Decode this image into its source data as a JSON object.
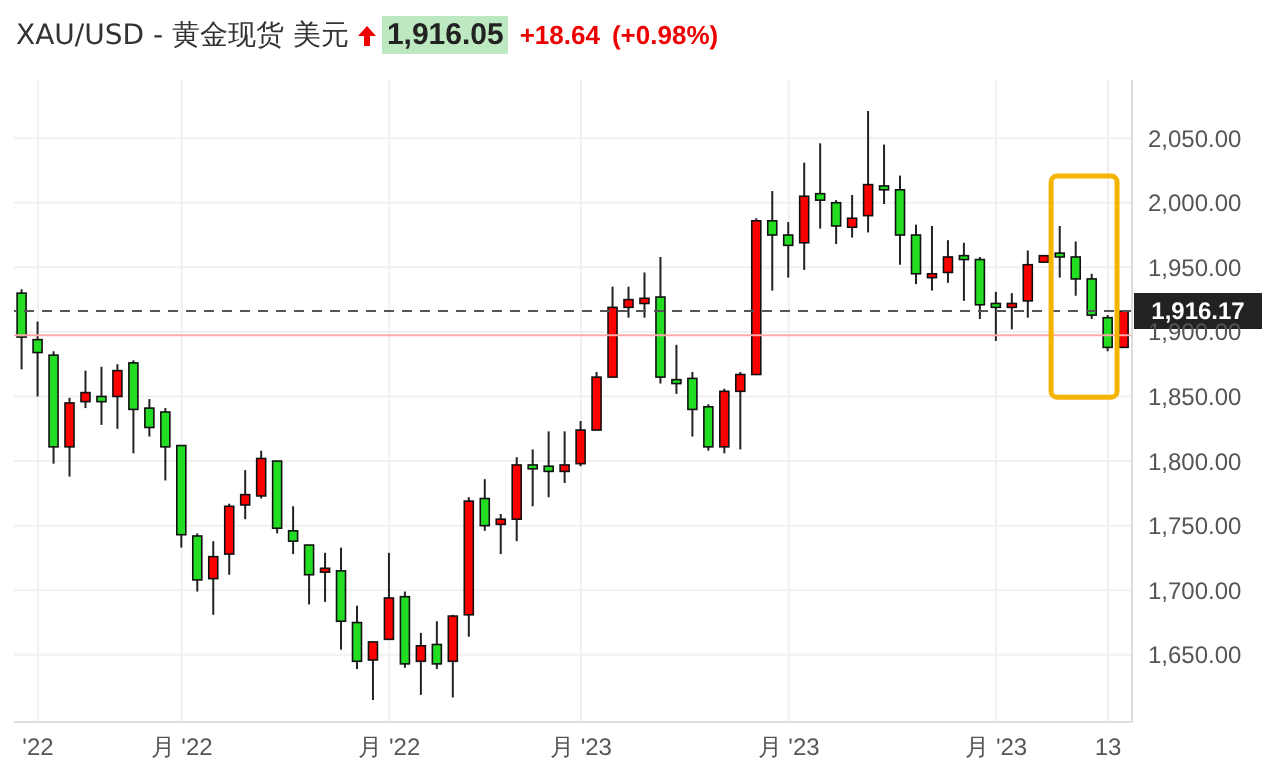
{
  "chart_data": {
    "type": "candlestick",
    "title": "XAU/USD - 黄金现货 美元",
    "annotations": [
      "1,916.05",
      "+18.64",
      "(+0.98%)"
    ],
    "categories": [
      null,
      "'22",
      null,
      null,
      null,
      null,
      null,
      null,
      null,
      null,
      "月 '22",
      null,
      null,
      null,
      null,
      null,
      null,
      null,
      null,
      null,
      null,
      null,
      null,
      "月 '22",
      null,
      null,
      null,
      null,
      null,
      null,
      null,
      null,
      null,
      null,
      null,
      "月 '23",
      null,
      null,
      null,
      null,
      null,
      null,
      null,
      null,
      null,
      null,
      null,
      null,
      "月 '23",
      null,
      null,
      null,
      null,
      null,
      null,
      null,
      null,
      null,
      null,
      null,
      null,
      "月 '23",
      null,
      null,
      null,
      null,
      null,
      null,
      "13",
      null
    ],
    "ohlc": [
      [
        1930,
        1933,
        1871,
        1896
      ],
      [
        1894,
        1908,
        1850,
        1884
      ],
      [
        1882,
        1885,
        1798,
        1811
      ],
      [
        1811,
        1849,
        1788,
        1845
      ],
      [
        1846,
        1870,
        1841,
        1853
      ],
      [
        1850,
        1873,
        1828,
        1846
      ],
      [
        1850,
        1875,
        1825,
        1870
      ],
      [
        1876,
        1878,
        1806,
        1840
      ],
      [
        1841,
        1848,
        1819,
        1826
      ],
      [
        1838,
        1841,
        1785,
        1811
      ],
      [
        1812,
        1812,
        1733,
        1743
      ],
      [
        1742,
        1744,
        1699,
        1708
      ],
      [
        1709,
        1738,
        1681,
        1726
      ],
      [
        1728,
        1767,
        1712,
        1765
      ],
      [
        1766,
        1793,
        1755,
        1774
      ],
      [
        1773,
        1808,
        1771,
        1802
      ],
      [
        1800,
        1800,
        1744,
        1748
      ],
      [
        1746,
        1765,
        1728,
        1738
      ],
      [
        1735,
        1735,
        1689,
        1712
      ],
      [
        1714,
        1729,
        1691,
        1717
      ],
      [
        1715,
        1733,
        1654,
        1676
      ],
      [
        1675,
        1688,
        1639,
        1645
      ],
      [
        1646,
        1660,
        1615,
        1660
      ],
      [
        1662,
        1729,
        1662,
        1694
      ],
      [
        1695,
        1699,
        1640,
        1643
      ],
      [
        1645,
        1667,
        1619,
        1657
      ],
      [
        1658,
        1676,
        1639,
        1643
      ],
      [
        1645,
        1681,
        1617,
        1680
      ],
      [
        1681,
        1772,
        1664,
        1769
      ],
      [
        1771,
        1786,
        1746,
        1750
      ],
      [
        1751,
        1759,
        1728,
        1755
      ],
      [
        1755,
        1803,
        1738,
        1797
      ],
      [
        1797,
        1809,
        1765,
        1794
      ],
      [
        1796,
        1823,
        1772,
        1792
      ],
      [
        1792,
        1823,
        1783,
        1797
      ],
      [
        1798,
        1831,
        1796,
        1824
      ],
      [
        1824,
        1869,
        1824,
        1865
      ],
      [
        1865,
        1935,
        1865,
        1919
      ],
      [
        1919,
        1935,
        1911,
        1925
      ],
      [
        1922,
        1946,
        1911,
        1926
      ],
      [
        1927,
        1958,
        1860,
        1865
      ],
      [
        1863,
        1890,
        1852,
        1860
      ],
      [
        1864,
        1869,
        1819,
        1840
      ],
      [
        1842,
        1844,
        1808,
        1811
      ],
      [
        1811,
        1856,
        1806,
        1854
      ],
      [
        1854,
        1869,
        1809,
        1867
      ],
      [
        1867,
        1988,
        1867,
        1986
      ],
      [
        1986,
        2009,
        1932,
        1975
      ],
      [
        1975,
        1985,
        1942,
        1967
      ],
      [
        1969,
        2031,
        1948,
        2005
      ],
      [
        2007,
        2046,
        1980,
        2002
      ],
      [
        2000,
        2002,
        1968,
        1982
      ],
      [
        1981,
        2006,
        1973,
        1988
      ],
      [
        1990,
        2071,
        1977,
        2014
      ],
      [
        2013,
        2045,
        1999,
        2010
      ],
      [
        2010,
        2021,
        1952,
        1975
      ],
      [
        1975,
        1983,
        1937,
        1945
      ],
      [
        1942,
        1982,
        1932,
        1945
      ],
      [
        1946,
        1971,
        1938,
        1958
      ],
      [
        1959,
        1969,
        1924,
        1956
      ],
      [
        1956,
        1958,
        1910,
        1921
      ],
      [
        1922,
        1931,
        1893,
        1919
      ],
      [
        1919,
        1930,
        1902,
        1922
      ],
      [
        1924,
        1963,
        1911,
        1952
      ],
      [
        1954,
        1959,
        1954,
        1959
      ],
      [
        1961,
        1982,
        1942,
        1958
      ],
      [
        1958,
        1970,
        1928,
        1941
      ],
      [
        1941,
        1945,
        1910,
        1913
      ],
      [
        1911,
        1913,
        1885,
        1888
      ],
      [
        1888,
        1916,
        1888,
        1916
      ]
    ],
    "colors": [
      "#22dd22",
      "#22dd22",
      "#22dd22",
      "#ff0000",
      "#ff0000",
      "#22dd22",
      "#ff0000",
      "#22dd22",
      "#22dd22",
      "#22dd22",
      "#22dd22",
      "#22dd22",
      "#ff0000",
      "#ff0000",
      "#ff0000",
      "#ff0000",
      "#22dd22",
      "#22dd22",
      "#22dd22",
      "#ff0000",
      "#22dd22",
      "#22dd22",
      "#ff0000",
      "#ff0000",
      "#22dd22",
      "#ff0000",
      "#22dd22",
      "#ff0000",
      "#ff0000",
      "#22dd22",
      "#ff0000",
      "#ff0000",
      "#22dd22",
      "#22dd22",
      "#ff0000",
      "#ff0000",
      "#ff0000",
      "#ff0000",
      "#ff0000",
      "#ff0000",
      "#22dd22",
      "#22dd22",
      "#22dd22",
      "#22dd22",
      "#ff0000",
      "#ff0000",
      "#ff0000",
      "#22dd22",
      "#22dd22",
      "#ff0000",
      "#22dd22",
      "#22dd22",
      "#ff0000",
      "#ff0000",
      "#22dd22",
      "#22dd22",
      "#22dd22",
      "#ff0000",
      "#ff0000",
      "#22dd22",
      "#22dd22",
      "#22dd22",
      "#ff0000",
      "#ff0000",
      "#ff0000",
      "#22dd22",
      "#22dd22",
      "#22dd22",
      "#22dd22",
      "#ff0000"
    ],
    "ylim": [
      1598,
      2095
    ],
    "yticks": [
      {
        "value": 1650,
        "label": "1,650.00"
      },
      {
        "value": 1700,
        "label": "1,700.00"
      },
      {
        "value": 1750,
        "label": "1,750.00"
      },
      {
        "value": 1800,
        "label": "1,800.00"
      },
      {
        "value": 1850,
        "label": "1,850.00"
      },
      {
        "value": 1900,
        "label": "1,900.00"
      },
      {
        "value": 1950,
        "label": "1,950.00"
      },
      {
        "value": 2000,
        "label": "2,000.00"
      },
      {
        "value": 2050,
        "label": "2,050.00"
      }
    ],
    "ref_lines": [
      {
        "axis": "y",
        "value": 1916.17,
        "label": "1,916.17",
        "color": "#555555",
        "line_style": "dashed"
      },
      {
        "axis": "y",
        "value": 1897.41,
        "label": null,
        "color": "#ffaaaa",
        "line_style": "solid"
      }
    ],
    "grid": true
  }
}
